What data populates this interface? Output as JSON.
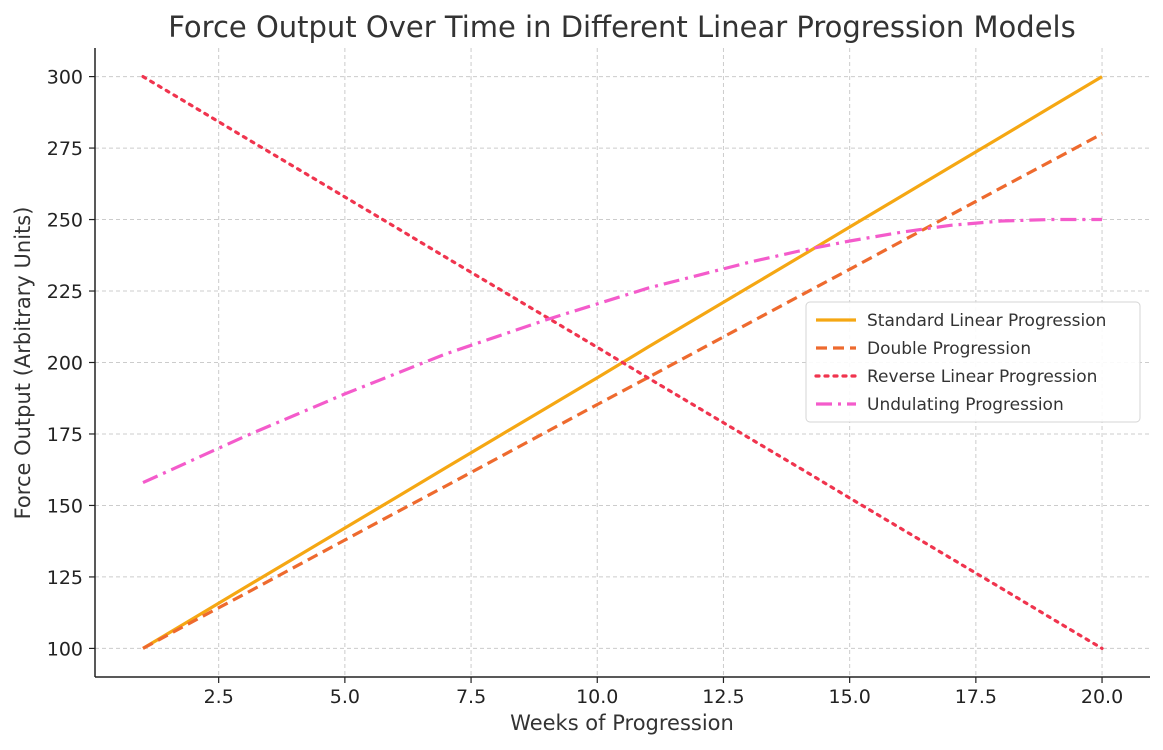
{
  "chart_data": {
    "type": "line",
    "title": "Force Output Over Time in Different Linear Progression Models",
    "xlabel": "Weeks of Progression",
    "ylabel": "Force Output (Arbitrary Units)",
    "xlim": [
      0.05,
      20.95
    ],
    "ylim": [
      90,
      310
    ],
    "xticks": [
      2.5,
      5.0,
      7.5,
      10.0,
      12.5,
      15.0,
      17.5,
      20.0
    ],
    "xtick_labels": [
      "2.5",
      "5.0",
      "7.5",
      "10.0",
      "12.5",
      "15.0",
      "17.5",
      "20.0"
    ],
    "yticks": [
      100,
      125,
      150,
      175,
      200,
      225,
      250,
      275,
      300
    ],
    "ytick_labels": [
      "100",
      "125",
      "150",
      "175",
      "200",
      "225",
      "250",
      "275",
      "300"
    ],
    "grid": true,
    "legend_position": "center-right",
    "x": [
      1,
      2,
      3,
      4,
      5,
      6,
      7,
      8,
      9,
      10,
      11,
      12,
      13,
      14,
      15,
      16,
      17,
      18,
      19,
      20
    ],
    "series": [
      {
        "name": "Standard Linear Progression",
        "color": "#F5A713",
        "style": "solid",
        "values": [
          100.0,
          110.5,
          121.1,
          131.6,
          142.1,
          152.6,
          163.2,
          173.7,
          184.2,
          194.7,
          205.3,
          215.8,
          226.3,
          236.8,
          247.4,
          257.9,
          268.4,
          278.9,
          289.5,
          300.0
        ]
      },
      {
        "name": "Double Progression",
        "color": "#EE6A2E",
        "style": "dashed",
        "values": [
          100.0,
          109.5,
          118.9,
          128.4,
          137.9,
          147.4,
          156.8,
          166.3,
          175.8,
          185.3,
          194.7,
          204.2,
          213.7,
          223.2,
          232.6,
          242.1,
          251.6,
          261.1,
          270.5,
          280.0
        ]
      },
      {
        "name": "Reverse Linear Progression",
        "color": "#F0344E",
        "style": "dotted",
        "values": [
          300.0,
          289.5,
          278.9,
          268.4,
          257.9,
          247.4,
          236.8,
          226.3,
          215.8,
          205.3,
          194.7,
          184.2,
          173.7,
          163.2,
          152.6,
          142.1,
          131.6,
          121.1,
          110.5,
          100.0
        ]
      },
      {
        "name": "Undulating Progression",
        "color": "#F45BCB",
        "style": "dashdot",
        "values": [
          158.0,
          166.0,
          174.0,
          181.5,
          189.0,
          196.0,
          203.0,
          209.0,
          215.0,
          220.5,
          226.0,
          230.5,
          235.0,
          239.0,
          242.5,
          245.5,
          248.0,
          249.5,
          250.0,
          250.0
        ]
      }
    ]
  }
}
